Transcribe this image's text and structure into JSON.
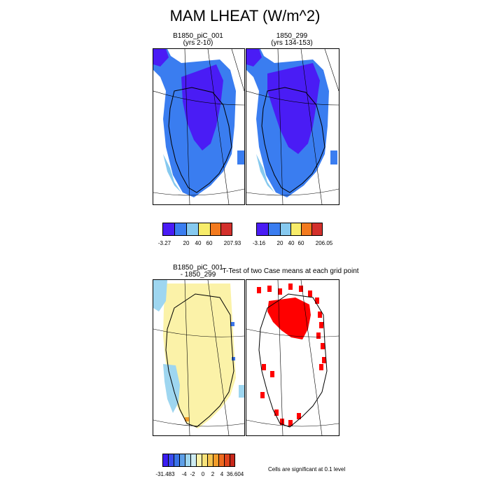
{
  "title": "MAM LHEAT (W/m^2)",
  "colors": {
    "c1": "#4a1cf5",
    "c2": "#3a7df0",
    "c3": "#86c9ef",
    "c4": "#f7ec6a",
    "c5": "#f37a1e",
    "c6": "#d3302c",
    "diff_deep_blue": "#3b1df2",
    "diff_blue": "#3a74e8",
    "diff_light_blue": "#9ed6f0",
    "diff_pale_yellow": "#fbf2a8",
    "diff_orange": "#f29d2a",
    "signif_red": "#ff0000"
  },
  "panels": {
    "top_left": {
      "title_line1": "B1850_piC_001",
      "title_line2": "(yrs 2-10)"
    },
    "top_right": {
      "title_line1": "1850_299",
      "title_line2": "(yrs 134-153)"
    },
    "bottom_left": {
      "title_line1": "B1850_piC_001",
      "title_line2": "- 1850_299"
    },
    "bottom_right": {
      "title": "T-Test of two Case means at each grid point"
    }
  },
  "legends": {
    "left": {
      "labels": [
        "-3.27",
        "20",
        "40",
        "60",
        "207.93"
      ]
    },
    "right": {
      "labels": [
        "-3.16",
        "20",
        "40",
        "60",
        "206.05"
      ]
    },
    "diff": {
      "labels": [
        "-31.483",
        "-4",
        "-2",
        "0",
        "2",
        "4",
        "36.604"
      ]
    }
  },
  "note": "Cells are significant at 0.1 level",
  "chart_data": [
    {
      "type": "heatmap",
      "title": "B1850_piC_001 (yrs 2-10)",
      "colorbar_labels": [
        "-3.27",
        "20",
        "40",
        "60",
        "207.93"
      ],
      "description": "MAM latent heat flux over Greenland; interior ice sheet lowest (deep blue), margins blue"
    },
    {
      "type": "heatmap",
      "title": "1850_299 (yrs 134-153)",
      "colorbar_labels": [
        "-3.16",
        "20",
        "40",
        "60",
        "206.05"
      ]
    },
    {
      "type": "heatmap",
      "title": "B1850_piC_001 - 1850_299",
      "colorbar_labels": [
        "-31.483",
        "-4",
        "-2",
        "0",
        "2",
        "4",
        "36.604"
      ]
    },
    {
      "type": "heatmap",
      "title": "T-Test of two Case means at each grid point",
      "annotation": "Cells are significant at 0.1 level"
    }
  ]
}
